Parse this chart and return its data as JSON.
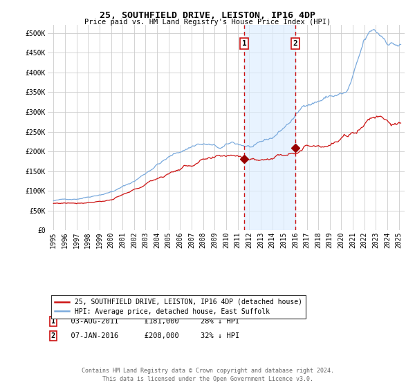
{
  "title": "25, SOUTHFIELD DRIVE, LEISTON, IP16 4DP",
  "subtitle": "Price paid vs. HM Land Registry's House Price Index (HPI)",
  "legend_line1": "25, SOUTHFIELD DRIVE, LEISTON, IP16 4DP (detached house)",
  "legend_line2": "HPI: Average price, detached house, East Suffolk",
  "footer": "Contains HM Land Registry data © Crown copyright and database right 2024.\nThis data is licensed under the Open Government Licence v3.0.",
  "annotation1_date": "03-AUG-2011",
  "annotation1_price": "£181,000",
  "annotation1_pct": "28% ↓ HPI",
  "annotation2_date": "07-JAN-2016",
  "annotation2_price": "£208,000",
  "annotation2_pct": "32% ↓ HPI",
  "sale1_x": 2011.58,
  "sale1_y": 181000,
  "sale2_x": 2016.02,
  "sale2_y": 208000,
  "vline1_x": 2011.58,
  "vline2_x": 2016.02,
  "shade_x1": 2011.58,
  "shade_x2": 2016.02,
  "hpi_color": "#7aaadd",
  "price_color": "#cc1111",
  "marker_color": "#990000",
  "shade_color": "#ddeeff",
  "vline_color": "#cc1111",
  "background_color": "#ffffff",
  "grid_color": "#cccccc",
  "ylim": [
    0,
    520000
  ],
  "xlim": [
    1994.5,
    2025.5
  ],
  "yticks": [
    0,
    50000,
    100000,
    150000,
    200000,
    250000,
    300000,
    350000,
    400000,
    450000,
    500000
  ],
  "ytick_labels": [
    "£0",
    "£50K",
    "£100K",
    "£150K",
    "£200K",
    "£250K",
    "£300K",
    "£350K",
    "£400K",
    "£450K",
    "£500K"
  ],
  "xticks": [
    1995,
    1996,
    1997,
    1998,
    1999,
    2000,
    2001,
    2002,
    2003,
    2004,
    2005,
    2006,
    2007,
    2008,
    2009,
    2010,
    2011,
    2012,
    2013,
    2014,
    2015,
    2016,
    2017,
    2018,
    2019,
    2020,
    2021,
    2022,
    2023,
    2024,
    2025
  ],
  "title_fontsize": 9.5,
  "subtitle_fontsize": 7.5,
  "tick_fontsize": 7,
  "legend_fontsize": 7,
  "footer_fontsize": 6
}
